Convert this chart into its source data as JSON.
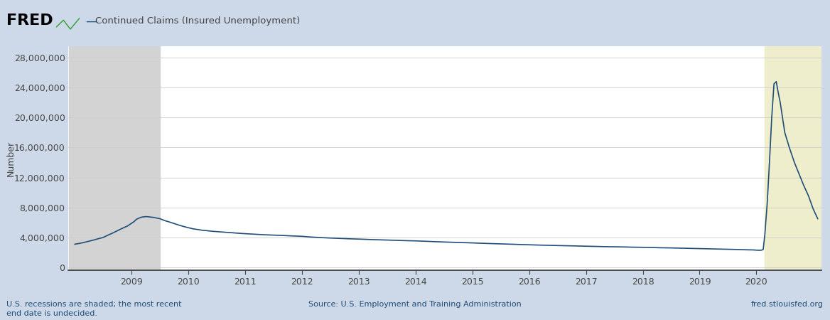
{
  "title": "Continued Claims (Insured Unemployment)",
  "ylabel": "Number",
  "line_color": "#1f4e79",
  "background_color": "#cdd9e8",
  "plot_bg_color": "#ffffff",
  "recession_shade_color_1": "#d3d3d3",
  "recession_shade_color_2": "#eeeecc",
  "recession_shade_alpha": 1.0,
  "yticks": [
    0,
    4000000,
    8000000,
    12000000,
    16000000,
    20000000,
    24000000,
    28000000
  ],
  "xtick_years": [
    2009,
    2010,
    2011,
    2012,
    2013,
    2014,
    2015,
    2016,
    2017,
    2018,
    2019,
    2020
  ],
  "recession_band_1": [
    2007.9,
    2009.5
  ],
  "recession_band_2": [
    2020.15,
    2021.15
  ],
  "footer_left": "U.S. recessions are shaded; the most recent\nend date is undecided.",
  "footer_center": "Source: U.S. Employment and Training Administration",
  "footer_right": "fred.stlouisfed.org",
  "footer_color": "#1f4e79",
  "line_width": 1.2,
  "xlim_left": 2007.88,
  "xlim_right": 2021.15,
  "ylim_bottom": -400000,
  "ylim_top": 29500000,
  "data_x": [
    2008.0,
    2008.08,
    2008.17,
    2008.25,
    2008.33,
    2008.42,
    2008.5,
    2008.58,
    2008.67,
    2008.75,
    2008.83,
    2008.92,
    2009.0,
    2009.04,
    2009.08,
    2009.12,
    2009.17,
    2009.21,
    2009.25,
    2009.29,
    2009.33,
    2009.38,
    2009.42,
    2009.46,
    2009.5,
    2009.58,
    2009.67,
    2009.75,
    2009.83,
    2009.92,
    2010.0,
    2010.08,
    2010.17,
    2010.25,
    2010.33,
    2010.42,
    2010.5,
    2010.58,
    2010.67,
    2010.75,
    2010.83,
    2010.92,
    2011.0,
    2011.17,
    2011.33,
    2011.5,
    2011.67,
    2011.83,
    2012.0,
    2012.17,
    2012.33,
    2012.5,
    2012.67,
    2012.83,
    2013.0,
    2013.17,
    2013.33,
    2013.5,
    2013.67,
    2013.83,
    2014.0,
    2014.17,
    2014.33,
    2014.5,
    2014.67,
    2014.83,
    2015.0,
    2015.17,
    2015.33,
    2015.5,
    2015.67,
    2015.83,
    2016.0,
    2016.17,
    2016.33,
    2016.5,
    2016.67,
    2016.83,
    2017.0,
    2017.17,
    2017.33,
    2017.5,
    2017.67,
    2017.83,
    2018.0,
    2018.17,
    2018.33,
    2018.5,
    2018.67,
    2018.83,
    2019.0,
    2019.17,
    2019.33,
    2019.5,
    2019.67,
    2019.83,
    2019.96,
    2020.0,
    2020.04,
    2020.08,
    2020.12,
    2020.15,
    2020.19,
    2020.23,
    2020.27,
    2020.31,
    2020.35,
    2020.38,
    2020.42,
    2020.46,
    2020.5,
    2020.58,
    2020.67,
    2020.75,
    2020.83,
    2020.92,
    2021.0,
    2021.08
  ],
  "data_y": [
    3100000,
    3200000,
    3350000,
    3500000,
    3650000,
    3850000,
    4000000,
    4300000,
    4600000,
    4900000,
    5200000,
    5500000,
    5900000,
    6100000,
    6400000,
    6550000,
    6700000,
    6750000,
    6780000,
    6760000,
    6720000,
    6680000,
    6620000,
    6560000,
    6500000,
    6250000,
    6050000,
    5850000,
    5650000,
    5450000,
    5300000,
    5150000,
    5050000,
    4950000,
    4900000,
    4820000,
    4780000,
    4730000,
    4680000,
    4640000,
    4590000,
    4540000,
    4500000,
    4430000,
    4360000,
    4310000,
    4260000,
    4200000,
    4150000,
    4050000,
    3980000,
    3920000,
    3870000,
    3820000,
    3780000,
    3730000,
    3690000,
    3650000,
    3610000,
    3570000,
    3540000,
    3490000,
    3440000,
    3390000,
    3350000,
    3310000,
    3270000,
    3220000,
    3180000,
    3140000,
    3100000,
    3060000,
    3020000,
    2980000,
    2950000,
    2920000,
    2890000,
    2860000,
    2830000,
    2800000,
    2770000,
    2750000,
    2730000,
    2700000,
    2680000,
    2650000,
    2620000,
    2600000,
    2570000,
    2540000,
    2510000,
    2480000,
    2450000,
    2420000,
    2390000,
    2350000,
    2330000,
    2300000,
    2290000,
    2290000,
    2380000,
    4500000,
    8500000,
    14000000,
    20000000,
    24500000,
    24800000,
    23500000,
    22000000,
    20000000,
    18000000,
    16000000,
    14000000,
    12500000,
    11000000,
    9500000,
    7800000,
    6500000
  ]
}
